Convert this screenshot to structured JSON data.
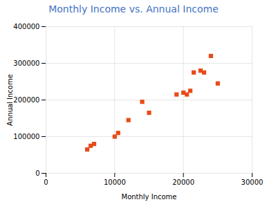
{
  "chart_data": {
    "type": "scatter",
    "title": "Monthly Income vs. Annual Income",
    "xlabel": "Monthly Income",
    "ylabel": "Annual Income",
    "x": [
      6000,
      6500,
      7000,
      10000,
      10500,
      12000,
      14000,
      15000,
      19000,
      20000,
      20500,
      21000,
      21500,
      22500,
      23000,
      24000,
      25000
    ],
    "values": [
      65000,
      75000,
      80000,
      100000,
      110000,
      145000,
      195000,
      165000,
      215000,
      220000,
      215000,
      225000,
      275000,
      280000,
      275000,
      320000,
      245000
    ],
    "color": "#E84B1A",
    "marker": "square",
    "xlim": [
      0,
      30000
    ],
    "ylim": [
      0,
      400000
    ],
    "xticks": [
      0,
      10000,
      20000,
      30000
    ],
    "yticks": [
      0,
      100000,
      200000,
      300000,
      400000
    ],
    "grid": true
  }
}
